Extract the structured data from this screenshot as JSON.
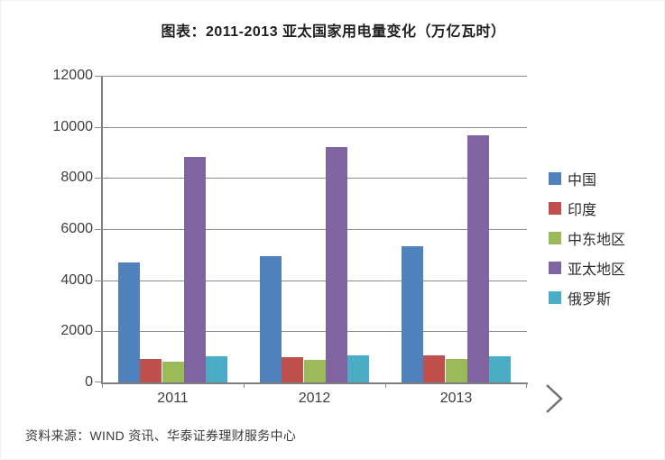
{
  "title": "图表：2011-2013 亚太国家用电量变化（万亿瓦时）",
  "source": "资料来源：WIND 资讯、华泰证券理财服务中心",
  "nav": {
    "next_arrow_name": "next-arrow"
  },
  "chart_data": {
    "type": "bar",
    "title": "图表：2011-2013 亚太国家用电量变化（万亿瓦时）",
    "categories": [
      "2011",
      "2012",
      "2013"
    ],
    "series": [
      {
        "id": "china",
        "name": "中国",
        "color": "#4F81BD",
        "values": [
          4700,
          4950,
          5330
        ]
      },
      {
        "id": "india",
        "name": "印度",
        "color": "#C0504D",
        "values": [
          920,
          990,
          1070
        ]
      },
      {
        "id": "middle-east",
        "name": "中东地区",
        "color": "#9BBB59",
        "values": [
          820,
          880,
          930
        ]
      },
      {
        "id": "asia-pacific",
        "name": "亚太地区",
        "color": "#8064A2",
        "values": [
          8820,
          9210,
          9670
        ]
      },
      {
        "id": "russia",
        "name": "俄罗斯",
        "color": "#4BACC6",
        "values": [
          1020,
          1060,
          1020
        ]
      }
    ],
    "ylim": [
      0,
      12000
    ],
    "ytick_step": 2000,
    "ytick_labels": [
      "0",
      "2000",
      "4000",
      "6000",
      "8000",
      "10000",
      "12000"
    ],
    "grid": true,
    "legend_position": "right",
    "xlabel": "",
    "ylabel": ""
  }
}
